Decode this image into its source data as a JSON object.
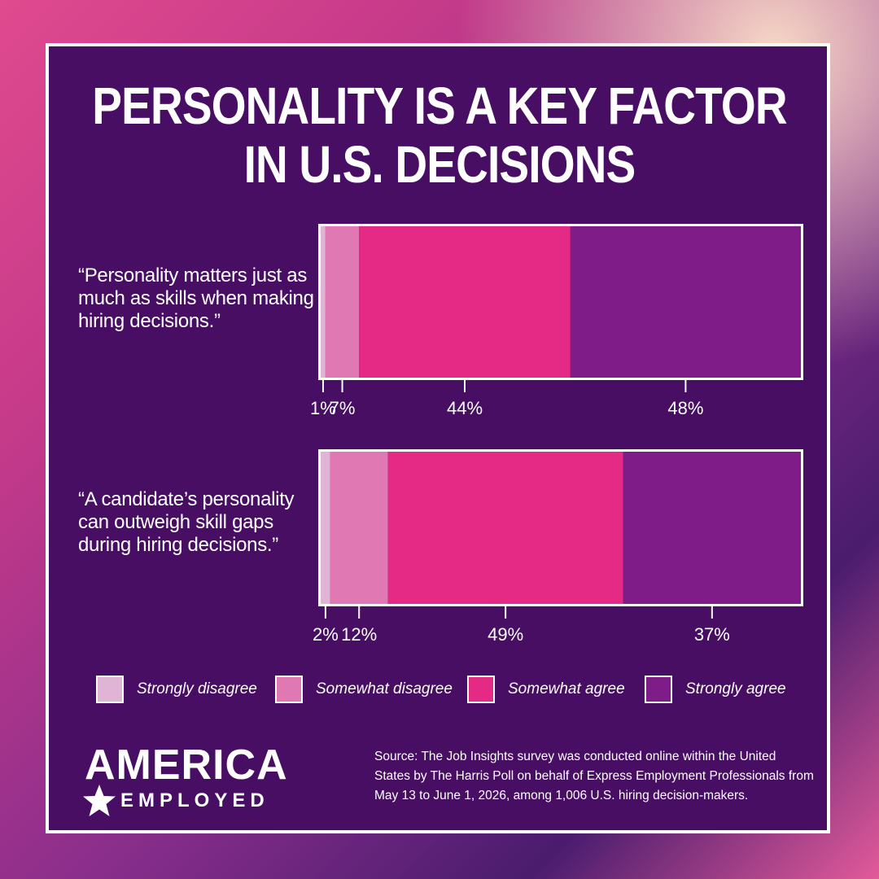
{
  "title_line1": "PERSONALITY IS A KEY FACTOR",
  "title_line2": "IN U.S. DECISIONS",
  "chart_data": {
    "type": "bar",
    "stacked": true,
    "orientation": "horizontal",
    "categories": [
      "“Personality matters just as much as skills when making hiring decisions.”",
      "“A candidate’s personality can outweigh skill gaps during hiring decisions.”"
    ],
    "series": [
      {
        "name": "Strongly disagree",
        "values": [
          1,
          2
        ],
        "labels": [
          "1%",
          "2%"
        ],
        "color": "#e0b4d4"
      },
      {
        "name": "Somewhat disagree",
        "values": [
          7,
          12
        ],
        "labels": [
          "7%",
          "12%"
        ],
        "color": "#e078b4"
      },
      {
        "name": "Somewhat agree",
        "values": [
          44,
          49
        ],
        "labels": [
          "44%",
          "49%"
        ],
        "color": "#e52a86"
      },
      {
        "name": "Strongly agree",
        "values": [
          48,
          37
        ],
        "labels": [
          "48%",
          "37%"
        ],
        "color": "#7f1c88"
      }
    ],
    "xlim": [
      0,
      100
    ],
    "legend": "bottom"
  },
  "logo": {
    "main": "AMERICA",
    "sub": "EMPLOYED"
  },
  "source": "Source: The Job Insights survey was conducted online within the United States by The Harris Poll on behalf of Express Employment Professionals from May 13 to June 1, 2026, among 1,006 U.S. hiring decision-makers.",
  "colors": {
    "panel": "#470e63",
    "border": "#ffffff",
    "text": "#ffffff"
  }
}
